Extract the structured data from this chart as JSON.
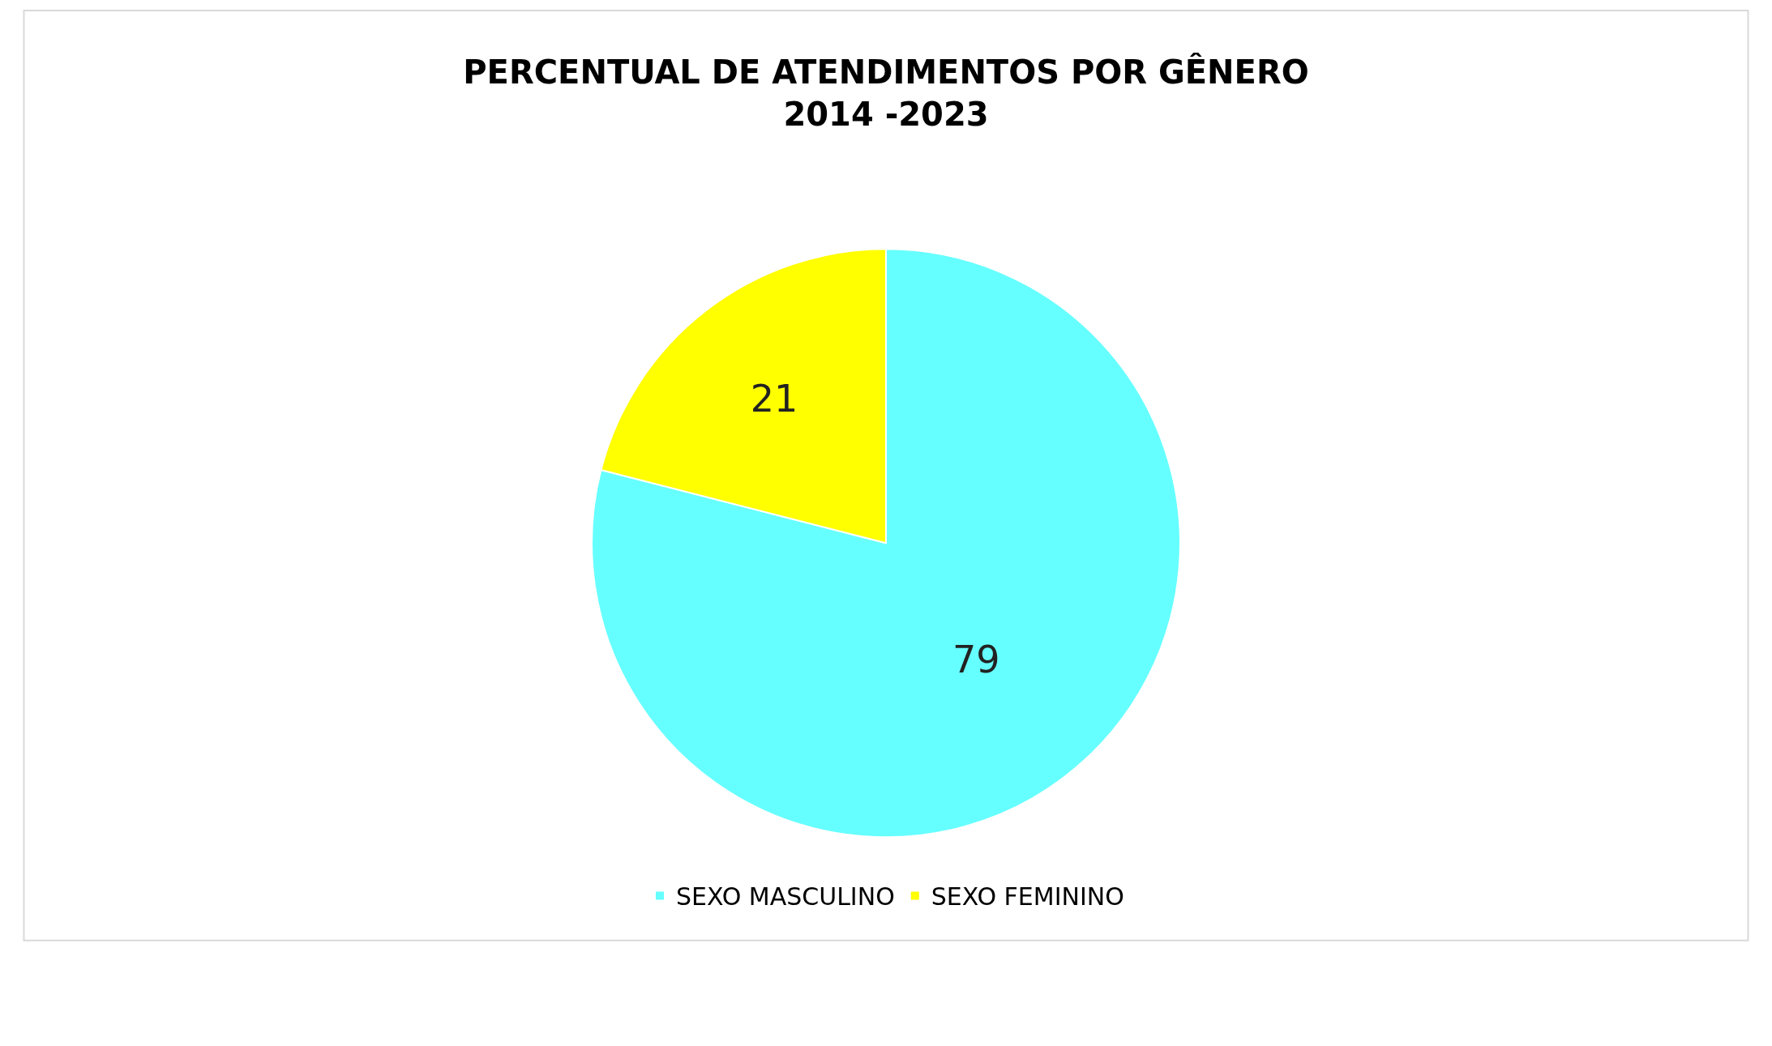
{
  "chart_data": {
    "type": "pie",
    "title": "PERCENTUAL DE ATENDIMENTOS POR GÊNERO\n2014 -2023",
    "categories": [
      "SEXO MASCULINO",
      "SEXO FEMININO"
    ],
    "values": [
      79,
      21
    ],
    "colors": [
      "#66ffff",
      "#ffff00"
    ],
    "data_labels": true,
    "legend": "bottom"
  }
}
